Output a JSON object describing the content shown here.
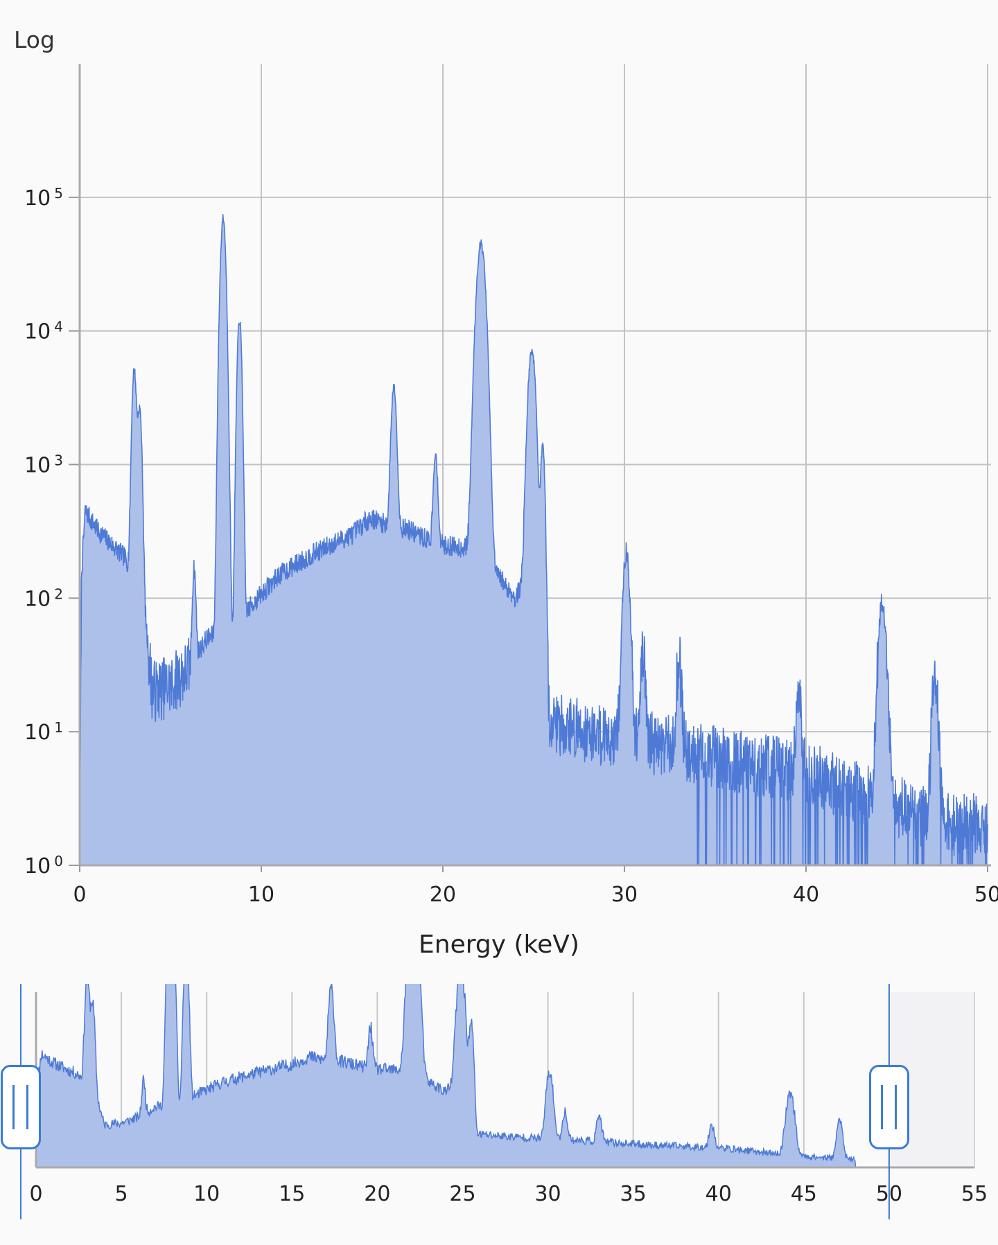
{
  "scale_label": "Log",
  "colors": {
    "line": "#4e7ad6",
    "fill": "#adc0ea",
    "grid": "#c2c2c2",
    "handle": "#3a7bd5"
  },
  "chart_data": [
    {
      "type": "area",
      "title": "",
      "xlabel": "Energy (keV)",
      "ylabel": "",
      "xlim": [
        0,
        50
      ],
      "ylim": [
        1,
        1000000
      ],
      "log_y": true,
      "grid": true,
      "x_ticks": [
        0,
        10,
        20,
        30,
        40,
        50
      ],
      "y_ticks": [
        {
          "base": "10",
          "exp": "0"
        },
        {
          "base": "10",
          "exp": "1"
        },
        {
          "base": "10",
          "exp": "2"
        },
        {
          "base": "10",
          "exp": "3"
        },
        {
          "base": "10",
          "exp": "4"
        },
        {
          "base": "10",
          "exp": "5"
        }
      ],
      "background": [
        [
          0,
          1
        ],
        [
          0.1,
          150
        ],
        [
          0.3,
          450
        ],
        [
          1,
          320
        ],
        [
          2.5,
          200
        ],
        [
          3.5,
          100
        ],
        [
          4,
          20
        ],
        [
          5,
          22
        ],
        [
          6,
          30
        ],
        [
          7,
          50
        ],
        [
          8.5,
          60
        ],
        [
          9.5,
          90
        ],
        [
          11,
          150
        ],
        [
          13,
          220
        ],
        [
          15,
          300
        ],
        [
          16,
          400
        ],
        [
          17,
          350
        ],
        [
          18,
          330
        ],
        [
          19,
          280
        ],
        [
          20,
          250
        ],
        [
          21,
          240
        ],
        [
          22,
          230
        ],
        [
          23,
          150
        ],
        [
          24,
          100
        ],
        [
          25,
          180
        ],
        [
          25.8,
          12
        ],
        [
          28,
          10
        ],
        [
          32,
          8
        ],
        [
          36,
          6
        ],
        [
          40,
          5
        ],
        [
          44,
          3
        ],
        [
          48,
          2
        ],
        [
          50,
          2
        ]
      ],
      "peaks": [
        [
          3.0,
          5000,
          0.1
        ],
        [
          3.3,
          2500,
          0.1
        ],
        [
          6.3,
          130,
          0.08
        ],
        [
          7.9,
          70000,
          0.12
        ],
        [
          8.8,
          12000,
          0.1
        ],
        [
          17.3,
          3500,
          0.12
        ],
        [
          19.6,
          900,
          0.1
        ],
        [
          22.1,
          45000,
          0.2
        ],
        [
          24.9,
          7000,
          0.17
        ],
        [
          25.5,
          1300,
          0.1
        ],
        [
          30.1,
          210,
          0.15
        ],
        [
          31.0,
          30,
          0.12
        ],
        [
          33.0,
          25,
          0.12
        ],
        [
          39.6,
          16,
          0.12
        ],
        [
          44.2,
          90,
          0.18
        ],
        [
          47.1,
          22,
          0.14
        ]
      ]
    },
    {
      "type": "area",
      "title": "",
      "xlabel": "",
      "ylabel": "",
      "xlim": [
        0,
        55
      ],
      "window": [
        0,
        50
      ],
      "x_ticks": [
        0,
        5,
        10,
        15,
        20,
        25,
        30,
        35,
        40,
        45,
        50,
        55
      ]
    }
  ]
}
